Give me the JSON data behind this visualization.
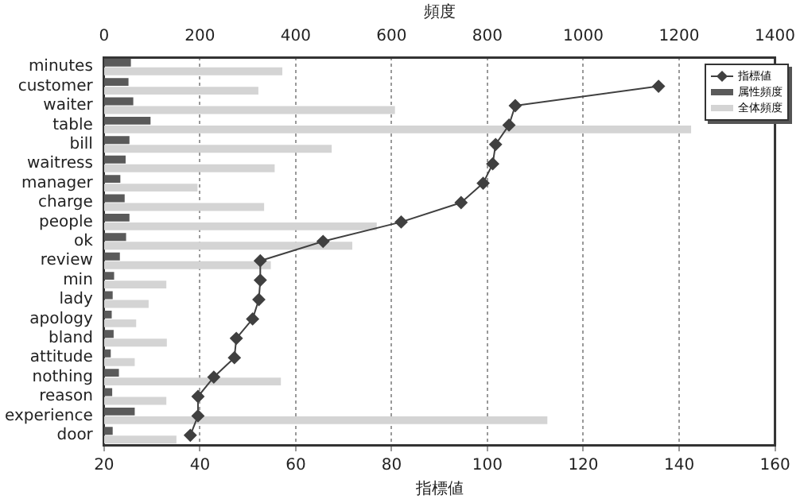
{
  "chart_data": {
    "type": "bar",
    "orientation": "horizontal",
    "xlabel": "指標値",
    "x2label": "頻度",
    "categories": [
      "minutes",
      "customer",
      "waiter",
      "table",
      "bill",
      "waitress",
      "manager",
      "charge",
      "people",
      "ok",
      "review",
      "min",
      "lady",
      "apology",
      "bland",
      "attitude",
      "nothing",
      "reason",
      "experience",
      "door"
    ],
    "series": [
      {
        "name": "指標値",
        "type": "line",
        "color": "#404040",
        "marker": "diamond",
        "values": [
          null,
          135.7,
          105.8,
          104.5,
          101.7,
          101.1,
          99.1,
          94.5,
          82.0,
          65.7,
          52.6,
          52.6,
          52.3,
          51.0,
          47.6,
          47.2,
          42.9,
          39.6,
          39.6,
          38.0
        ]
      },
      {
        "name": "属性頻度",
        "axis": "x2",
        "color": "#5a5a5a",
        "values": [
          56,
          51,
          61,
          97,
          53,
          45,
          34,
          43,
          53,
          46,
          33,
          21,
          18,
          16,
          20,
          14,
          31,
          17,
          64,
          18
        ]
      },
      {
        "name": "全体頻度",
        "axis": "x2",
        "color": "#d4d4d4",
        "values": [
          372,
          322,
          607,
          1225,
          475,
          356,
          195,
          334,
          569,
          518,
          348,
          130,
          93,
          67,
          131,
          64,
          369,
          130,
          925,
          151
        ]
      }
    ],
    "xlim": [
      20,
      160
    ],
    "xticks": [
      20,
      40,
      60,
      80,
      100,
      120,
      140,
      160
    ],
    "x2lim": [
      0,
      1400
    ],
    "x2ticks": [
      0,
      200,
      400,
      600,
      800,
      1000,
      1200,
      1400
    ],
    "grid": "x",
    "legend": "top right"
  }
}
